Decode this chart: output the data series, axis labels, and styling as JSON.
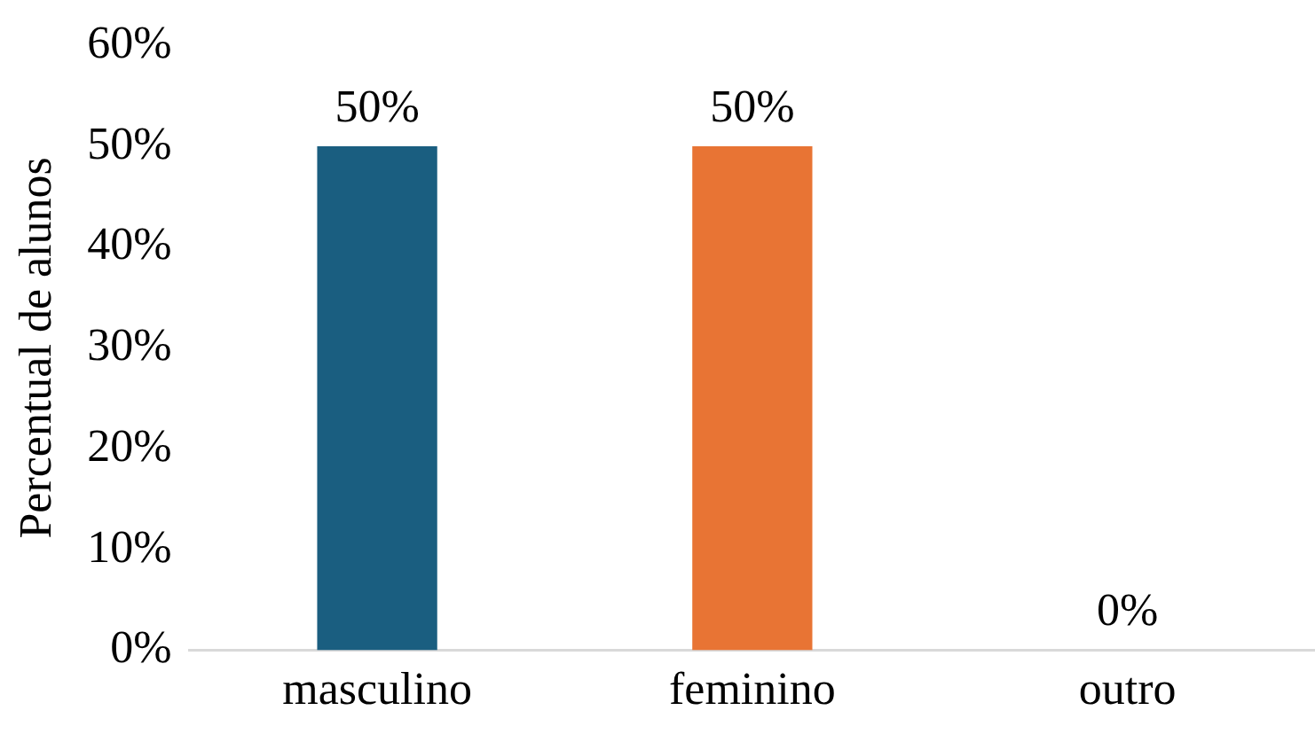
{
  "chart_data": {
    "type": "bar",
    "ylabel": "Percentual de alunos",
    "categories": [
      "masculino",
      "feminino",
      "outro"
    ],
    "values": [
      50,
      50,
      0
    ],
    "colors": [
      "#1a5e80",
      "#e87434",
      "#a5a5a5"
    ],
    "value_labels": [
      "50%",
      "50%",
      "0%"
    ],
    "ylim": [
      0,
      60
    ],
    "yticks": [
      {
        "value": 0,
        "label": "0%"
      },
      {
        "value": 10,
        "label": "10%"
      },
      {
        "value": 20,
        "label": "20%"
      },
      {
        "value": 30,
        "label": "30%"
      },
      {
        "value": 40,
        "label": "40%"
      },
      {
        "value": 50,
        "label": "50%"
      },
      {
        "value": 60,
        "label": "60%"
      }
    ],
    "grid": false,
    "legend": false
  }
}
